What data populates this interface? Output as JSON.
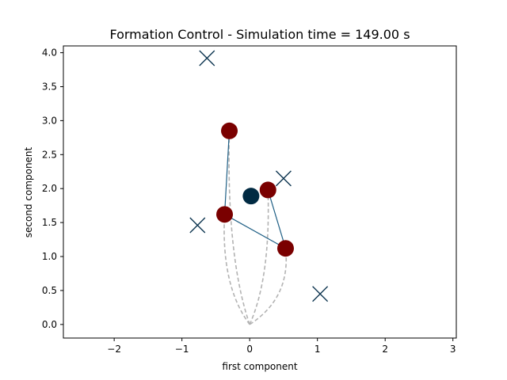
{
  "chart_data": {
    "type": "scatter",
    "title": "Formation Control - Simulation time = 149.00 s",
    "xlabel": "first component",
    "ylabel": "second component",
    "xlim": [
      -2.75,
      3.05
    ],
    "ylim": [
      -0.2,
      4.1
    ],
    "grid": false,
    "x_ticks": [
      -2,
      -1,
      0,
      1,
      2,
      3
    ],
    "x_tick_labels": [
      "−2",
      "−1",
      "0",
      "1",
      "2",
      "3"
    ],
    "y_ticks": [
      0.0,
      0.5,
      1.0,
      1.5,
      2.0,
      2.5,
      3.0,
      3.5,
      4.0
    ],
    "y_tick_labels": [
      "0.0",
      "0.5",
      "1.0",
      "1.5",
      "2.0",
      "2.5",
      "3.0",
      "3.5",
      "4.0"
    ],
    "agents": [
      {
        "x": -0.3,
        "y": 2.85
      },
      {
        "x": 0.27,
        "y": 1.98
      },
      {
        "x": -0.37,
        "y": 1.62
      },
      {
        "x": 0.53,
        "y": 1.12
      }
    ],
    "leader": {
      "x": 0.02,
      "y": 1.89
    },
    "targets": [
      {
        "x": -0.63,
        "y": 3.92
      },
      {
        "x": 0.5,
        "y": 2.15
      },
      {
        "x": -0.77,
        "y": 1.46
      },
      {
        "x": 1.04,
        "y": 0.45
      }
    ],
    "formation_edges": [
      [
        0,
        2
      ],
      [
        2,
        3
      ],
      [
        3,
        1
      ]
    ],
    "trajectory_origin": {
      "x": 0.0,
      "y": 0.0
    },
    "colors": {
      "agent": "#7a0000",
      "leader": "#002a42",
      "target": "#0d3550",
      "edge": "#1f5f85",
      "trajectory": "#b3b3b3",
      "axes": "#000000"
    }
  }
}
